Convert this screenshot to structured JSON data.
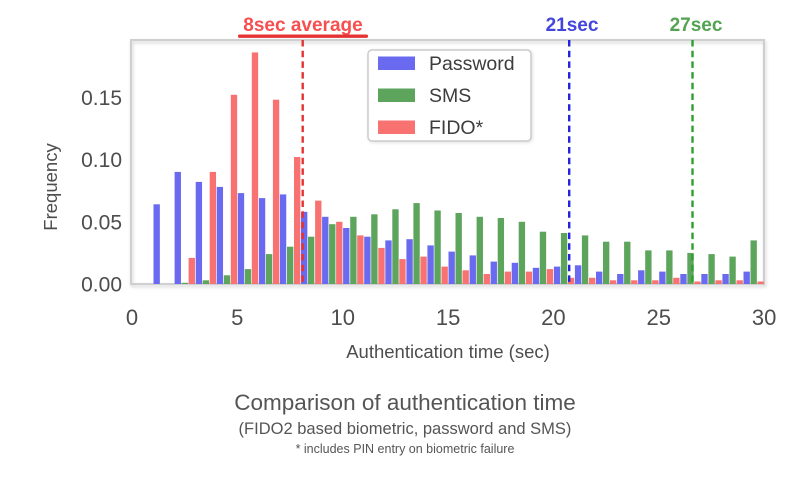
{
  "chart_data": {
    "type": "bar",
    "title": "Comparison of authentication time",
    "subtitle": "(FIDO2 based biometric, password and SMS)",
    "footnote": "* includes PIN entry on biometric failure",
    "xlabel": "Authentication time (sec)",
    "ylabel": "Frequency",
    "xlim": [
      0,
      30
    ],
    "ylim": [
      0,
      0.196
    ],
    "xticks": [
      "0",
      "5",
      "10",
      "15",
      "20",
      "25",
      "30"
    ],
    "yticks": [
      "0.00",
      "0.05",
      "0.10",
      "0.15"
    ],
    "grid": false,
    "legend_position": "upper center",
    "bins": [
      1,
      2,
      3,
      4,
      5,
      6,
      7,
      8,
      9,
      10,
      11,
      12,
      13,
      14,
      15,
      16,
      17,
      18,
      19,
      20,
      21,
      22,
      23,
      24,
      25,
      26,
      27,
      28,
      29
    ],
    "series": [
      {
        "name": "Password",
        "color": "#6a6af0",
        "values": [
          0.064,
          0.09,
          0.082,
          0.078,
          0.073,
          0.069,
          0.072,
          0.058,
          0.054,
          0.045,
          0.038,
          0.035,
          0.036,
          0.031,
          0.026,
          0.023,
          0.018,
          0.017,
          0.013,
          0.014,
          0.015,
          0.01,
          0.008,
          0.011,
          0.01,
          0.008,
          0.008,
          0.008,
          0.01
        ]
      },
      {
        "name": "SMS",
        "color": "#5da45d",
        "values": [
          0.0,
          0.001,
          0.003,
          0.007,
          0.012,
          0.024,
          0.03,
          0.038,
          0.048,
          0.054,
          0.056,
          0.06,
          0.065,
          0.059,
          0.057,
          0.054,
          0.053,
          0.05,
          0.042,
          0.041,
          0.039,
          0.034,
          0.034,
          0.027,
          0.027,
          0.025,
          0.024,
          0.022,
          0.035
        ]
      },
      {
        "name": "FIDO*",
        "color": "#f87272",
        "values": [
          0.0,
          0.021,
          0.09,
          0.152,
          0.186,
          0.148,
          0.102,
          0.067,
          0.05,
          0.039,
          0.029,
          0.02,
          0.022,
          0.014,
          0.011,
          0.008,
          0.01,
          0.01,
          0.012,
          0.005,
          0.005,
          0.003,
          0.003,
          0.003,
          0.005,
          0.002,
          0.003,
          0.003,
          0.002
        ]
      }
    ],
    "vlines": [
      {
        "x": 8.1,
        "color": "#e53333",
        "label": "8sec average",
        "label_color": "#f74f4f",
        "underline": true
      },
      {
        "x": 20.75,
        "color": "#2424dd",
        "label": "21sec",
        "label_color": "#4444de",
        "underline": false
      },
      {
        "x": 26.6,
        "color": "#2f9e2f",
        "label": "27sec",
        "label_color": "#53a353",
        "underline": false
      }
    ]
  }
}
